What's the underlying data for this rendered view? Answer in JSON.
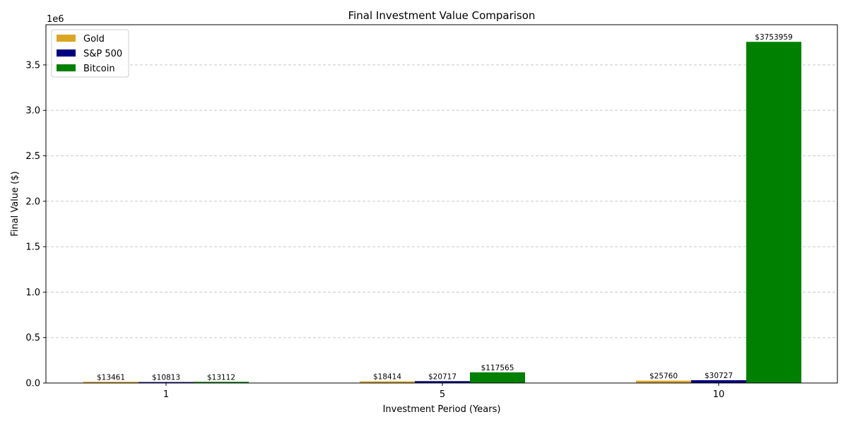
{
  "chart_data": {
    "type": "bar",
    "title": "Final Investment Value Comparison",
    "xlabel": "Investment Period (Years)",
    "ylabel": "Final Value ($)",
    "y_offset_label": "1e6",
    "categories": [
      "1",
      "5",
      "10"
    ],
    "series": [
      {
        "name": "Gold",
        "color": "#DAA520",
        "values": [
          13461,
          18414,
          25760
        ],
        "labels": [
          "$13461",
          "$18414",
          "$25760"
        ]
      },
      {
        "name": "S&P 500",
        "color": "#000080",
        "values": [
          10813,
          20717,
          30727
        ],
        "labels": [
          "$10813",
          "$20717",
          "$30727"
        ]
      },
      {
        "name": "Bitcoin",
        "color": "#008000",
        "values": [
          13112,
          117565,
          3753959
        ],
        "labels": [
          "$13112",
          "$117565",
          "$3753959"
        ]
      }
    ],
    "ylim": [
      0,
      3942157
    ],
    "yticks": [
      0,
      500000,
      1000000,
      1500000,
      2000000,
      2500000,
      3000000,
      3500000
    ],
    "ytick_labels": [
      "0.0",
      "0.5",
      "1.0",
      "1.5",
      "2.0",
      "2.5",
      "3.0",
      "3.5"
    ],
    "grid": "y-dashed",
    "legend_position": "top-left"
  }
}
